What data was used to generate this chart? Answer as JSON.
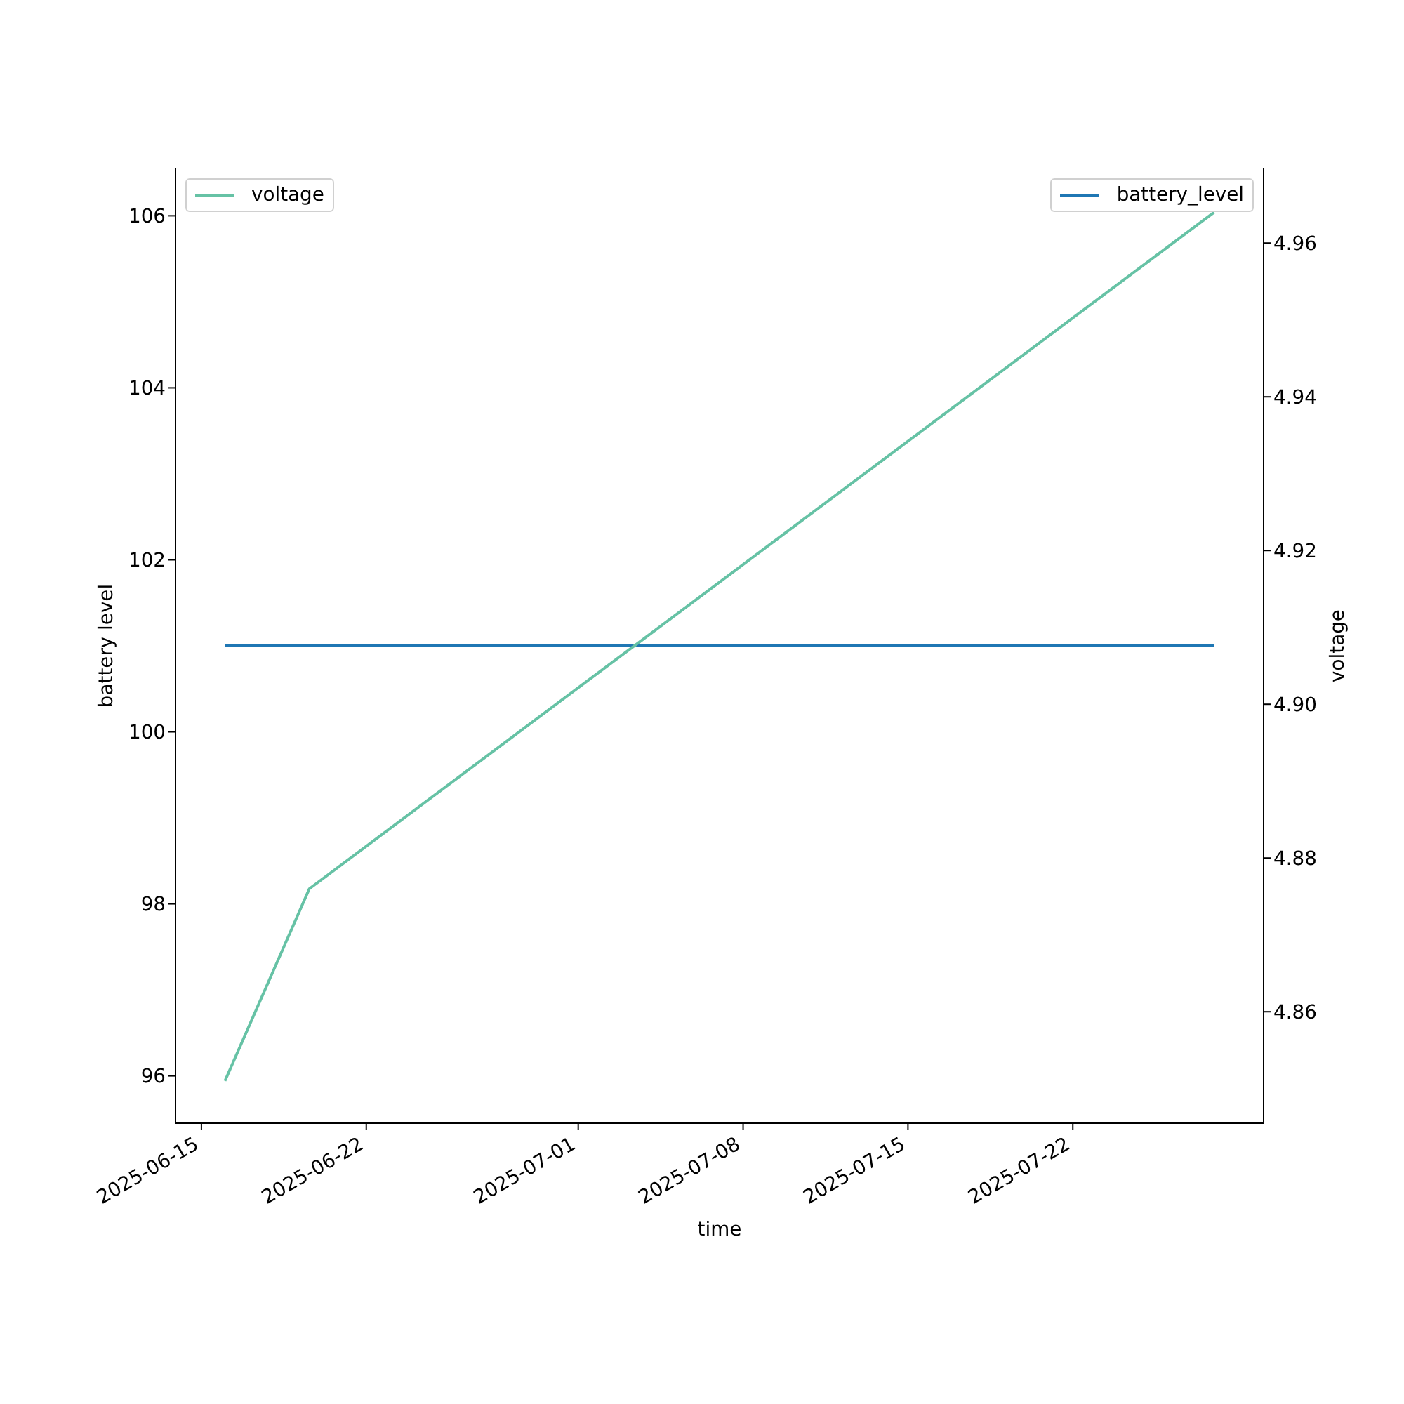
{
  "chart_data": {
    "type": "line",
    "xlabel": "time",
    "ylabel": "battery level",
    "y2label": "voltage",
    "x": [
      "2025-06-16",
      "2025-06-19T14:00",
      "2025-07-28"
    ],
    "series": [
      {
        "name": "battery_level",
        "color": "#1f77b4",
        "values": [
          101,
          101,
          101
        ]
      },
      {
        "name": "voltage",
        "color": "#66c2a5",
        "values": [
          4.851,
          4.876,
          4.964
        ],
        "axis": "y2"
      }
    ],
    "xlim": [
      "2025-06-13T21:36",
      "2025-07-30T02:24"
    ],
    "xticks": [
      "2025-06-15",
      "2025-06-22",
      "2025-07-01",
      "2025-07-08",
      "2025-07-15",
      "2025-07-22"
    ],
    "ylim": [
      95.45,
      106.55
    ],
    "yticks": [
      96,
      98,
      100,
      102,
      104,
      106
    ],
    "y2lim": [
      4.8455,
      4.9697
    ],
    "y2ticks": [
      4.86,
      4.88,
      {
        "value": 4.9,
        "label": "4.90"
      },
      4.92,
      4.94,
      4.96
    ],
    "legend": "top right",
    "line_style": "solid"
  }
}
